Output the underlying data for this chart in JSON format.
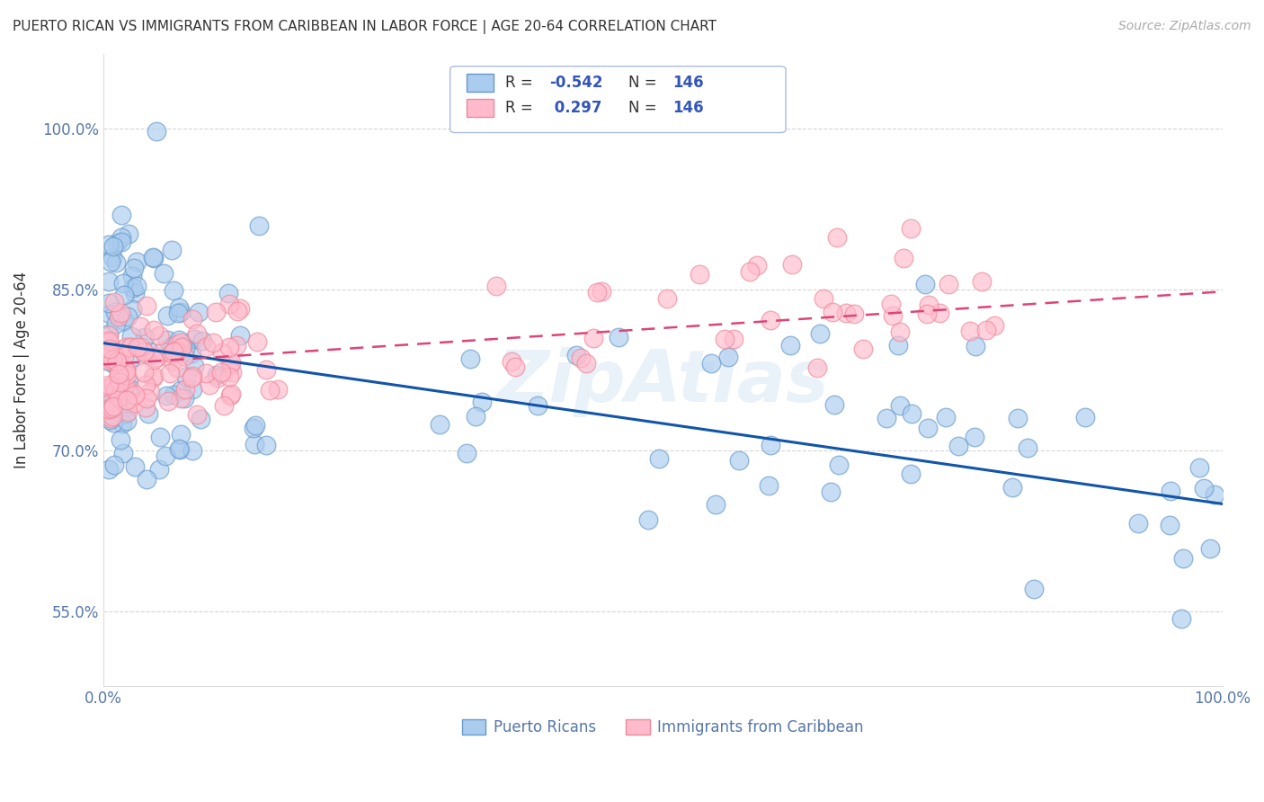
{
  "title": "PUERTO RICAN VS IMMIGRANTS FROM CARIBBEAN IN LABOR FORCE | AGE 20-64 CORRELATION CHART",
  "source": "Source: ZipAtlas.com",
  "ylabel": "In Labor Force | Age 20-64",
  "xlim": [
    0.0,
    1.0
  ],
  "ylim": [
    0.48,
    1.07
  ],
  "ytick_positions": [
    0.55,
    0.7,
    0.85,
    1.0
  ],
  "ytick_labels": [
    "55.0%",
    "70.0%",
    "85.0%",
    "100.0%"
  ],
  "blue_R": "-0.542",
  "blue_N": "146",
  "pink_R": "0.297",
  "pink_N": "146",
  "blue_color": "#aaccee",
  "blue_edge_color": "#6699cc",
  "pink_color": "#ffbbcc",
  "pink_edge_color": "#ee8899",
  "blue_line_color": "#1155aa",
  "pink_line_color": "#dd4477",
  "legend_label_blue": "Puerto Ricans",
  "legend_label_pink": "Immigrants from Caribbean",
  "watermark": "ZipAtlas",
  "background_color": "#ffffff",
  "grid_color": "#cccccc",
  "title_color": "#333333",
  "info_box_color": "#3355bb",
  "r_label_color": "#333333"
}
